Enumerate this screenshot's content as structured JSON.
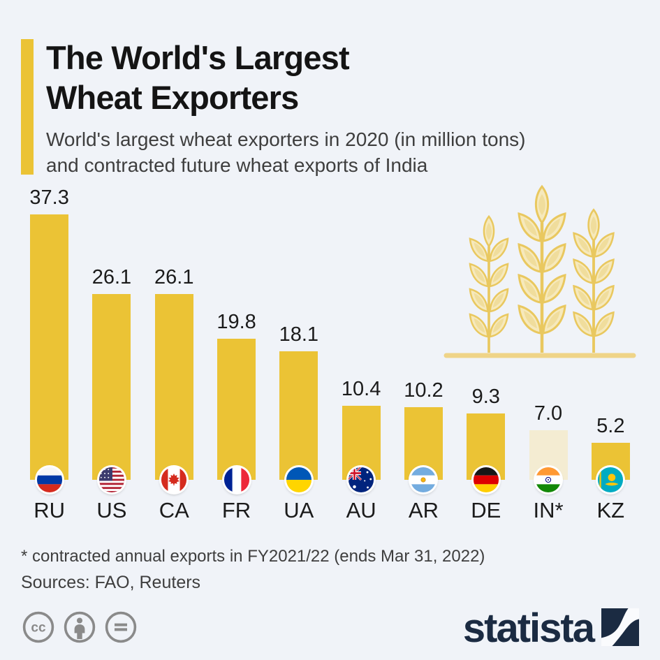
{
  "header": {
    "title_line1": "The World's Largest",
    "title_line2": "Wheat Exporters",
    "subtitle_line1": "World's largest wheat exporters in 2020 (in million tons)",
    "subtitle_line2": "and contracted future wheat exports of India"
  },
  "chart_data": {
    "type": "bar",
    "title": "The World's Largest Wheat Exporters",
    "subtitle": "World's largest wheat exporters in 2020 (in million tons) and contracted future wheat exports of India",
    "unit": "million tons",
    "categories": [
      "RU",
      "US",
      "CA",
      "FR",
      "UA",
      "AU",
      "AR",
      "DE",
      "IN*",
      "KZ"
    ],
    "values": [
      37.3,
      26.1,
      26.1,
      19.8,
      18.1,
      10.4,
      10.2,
      9.3,
      7.0,
      5.2
    ],
    "value_labels": [
      "37.3",
      "26.1",
      "26.1",
      "19.8",
      "18.1",
      "10.4",
      "10.2",
      "9.3",
      "7.0",
      "5.2"
    ],
    "flags": [
      "ru",
      "us",
      "ca",
      "fr",
      "ua",
      "au",
      "ar",
      "de",
      "in",
      "kz"
    ],
    "highlight_index": 8,
    "highlight_meaning": "contracted future wheat exports of India",
    "bar_color": "#EBC335",
    "highlight_bar_color": "#F4ECD2",
    "ylim": [
      0,
      40
    ],
    "grid": false,
    "y_axis_shown": false,
    "legend": "none",
    "xlabel": "",
    "ylabel": "million tons"
  },
  "footer": {
    "footnote": "* contracted annual exports in FY2021/22 (ends Mar 31, 2022)",
    "sources": "Sources: FAO, Reuters"
  },
  "branding": {
    "logo_text": "statista",
    "logo_color": "#1B2B42",
    "license_icons": [
      "cc-icon",
      "attribution-icon",
      "no-derivatives-icon"
    ]
  },
  "colors": {
    "background": "#F0F3F8",
    "accent_bar": "#EBC335",
    "text": "#1B1B1B"
  }
}
